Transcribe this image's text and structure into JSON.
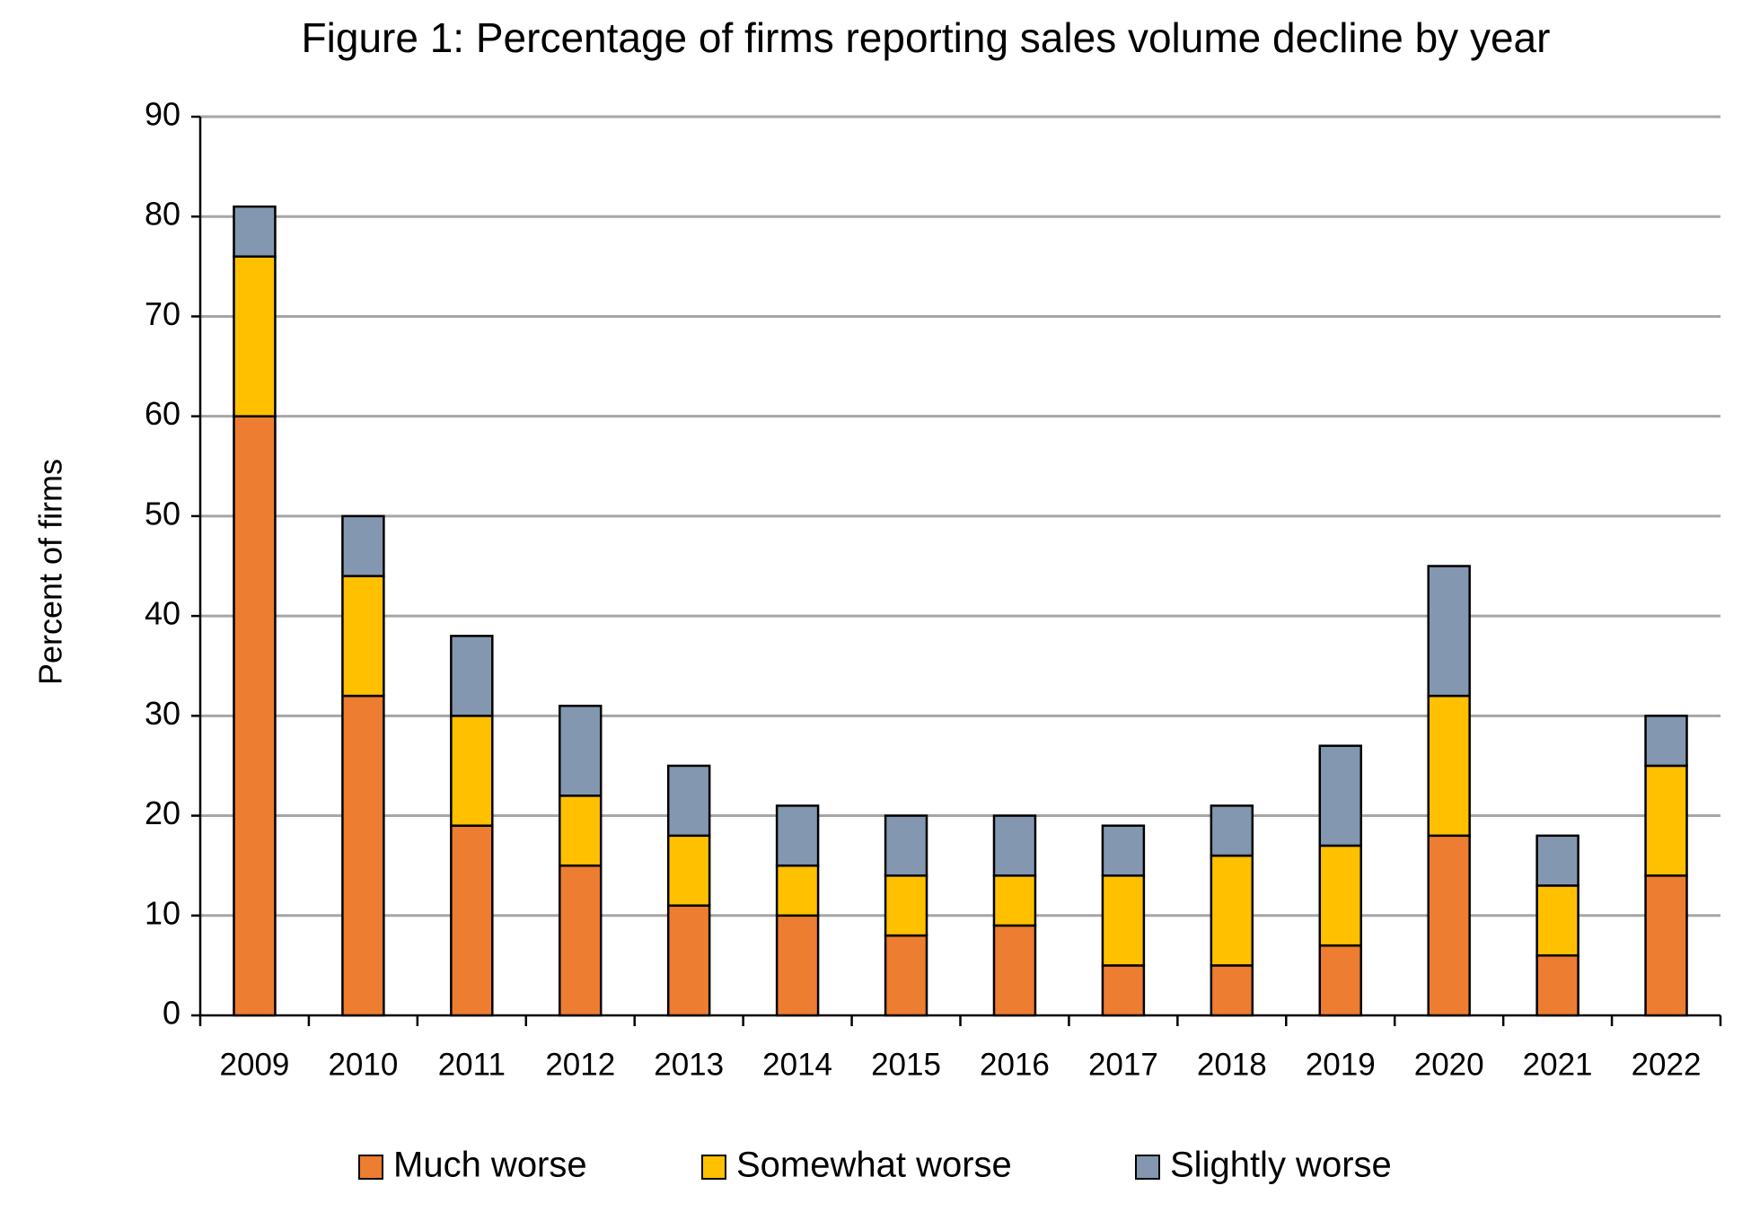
{
  "chart_data": {
    "type": "bar",
    "stacked": true,
    "title": "Figure 1: Percentage of firms reporting sales volume decline by year",
    "y_label": "Percent of firms",
    "categories": [
      "2009",
      "2010",
      "2011",
      "2012",
      "2013",
      "2014",
      "2015",
      "2016",
      "2017",
      "2018",
      "2019",
      "2020",
      "2021",
      "2022"
    ],
    "series": [
      {
        "name": "Much worse",
        "color": "#ed7d31",
        "values": [
          60,
          32,
          19,
          15,
          11,
          10,
          8,
          9,
          5,
          5,
          7,
          18,
          6,
          14
        ]
      },
      {
        "name": "Somewhat worse",
        "color": "#ffc000",
        "values": [
          16,
          12,
          11,
          7,
          7,
          5,
          6,
          5,
          9,
          11,
          10,
          14,
          7,
          11
        ]
      },
      {
        "name": "Slightly worse",
        "color": "#8497b0",
        "values": [
          5,
          6,
          8,
          9,
          7,
          6,
          6,
          6,
          5,
          5,
          10,
          13,
          5,
          5
        ]
      }
    ],
    "ylim": [
      0,
      90
    ],
    "yticks": [
      0,
      10,
      20,
      30,
      40,
      50,
      60,
      70,
      80,
      90
    ],
    "grid": true,
    "legend": "bottom"
  }
}
